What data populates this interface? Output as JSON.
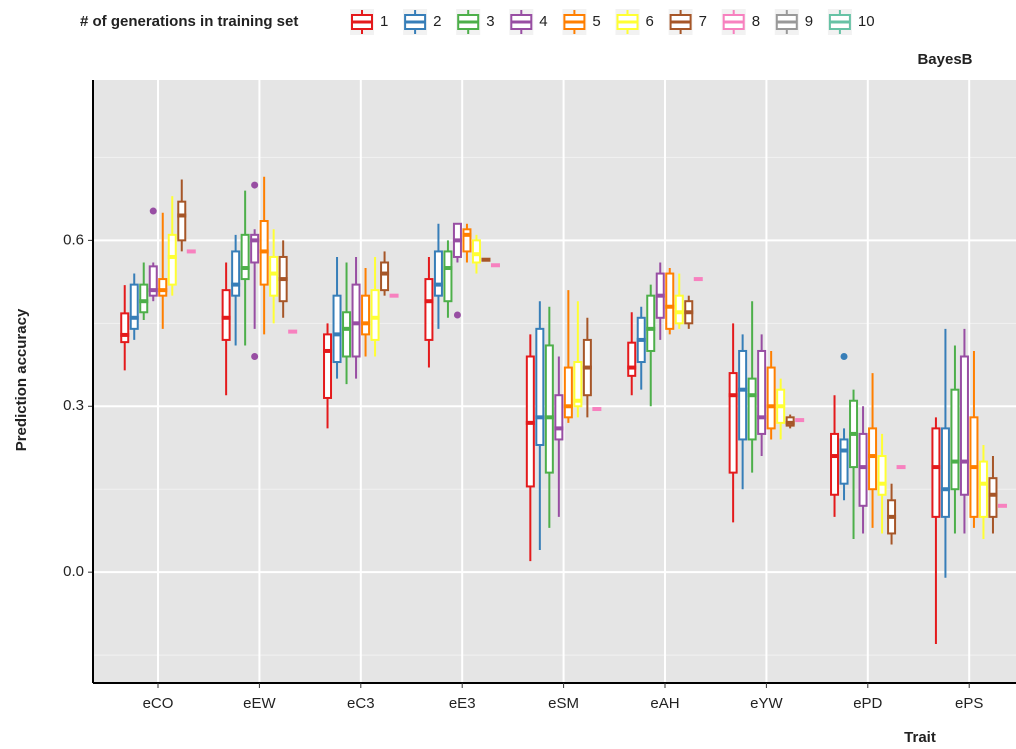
{
  "chart_data": {
    "type": "boxplot",
    "legend_title": "# of generations in training set",
    "panel_label": "BayesB",
    "xlabel": "Trait",
    "ylabel": "Prediction accuracy",
    "categories": [
      "eCO",
      "eEW",
      "eC3",
      "eE3",
      "eSM",
      "eAH",
      "eYW",
      "ePD",
      "ePS"
    ],
    "ylim": [
      -0.195,
      0.89
    ],
    "yticks": [
      {
        "value": 0,
        "label": "0.0"
      },
      0.3,
      0.6
    ],
    "grid": true,
    "legend_position": "top",
    "series": [
      {
        "name": "1",
        "color": "#e41a1c",
        "values": [
          [
            0.365,
            0.416,
            0.429,
            0.468,
            0.519
          ],
          [
            0.32,
            0.42,
            0.46,
            0.51,
            0.56
          ],
          [
            0.26,
            0.315,
            0.4,
            0.43,
            0.45
          ],
          [
            0.37,
            0.42,
            0.49,
            0.53,
            0.57
          ],
          [
            0.02,
            0.155,
            0.27,
            0.39,
            0.43
          ],
          [
            0.32,
            0.355,
            0.37,
            0.415,
            0.47
          ],
          [
            0.09,
            0.18,
            0.32,
            0.36,
            0.45
          ],
          [
            0.1,
            0.14,
            0.21,
            0.25,
            0.32
          ],
          [
            -0.13,
            0.1,
            0.19,
            0.26,
            0.28
          ]
        ]
      },
      {
        "name": "2",
        "color": "#377eb8",
        "values": [
          [
            0.42,
            0.44,
            0.46,
            0.52,
            0.54
          ],
          [
            0.41,
            0.5,
            0.52,
            0.58,
            0.61
          ],
          [
            0.35,
            0.38,
            0.43,
            0.5,
            0.57
          ],
          [
            0.44,
            0.5,
            0.52,
            0.58,
            0.63
          ],
          [
            0.04,
            0.23,
            0.28,
            0.44,
            0.49
          ],
          [
            0.33,
            0.38,
            0.42,
            0.46,
            0.48
          ],
          [
            0.15,
            0.24,
            0.33,
            0.4,
            0.43
          ],
          [
            0.13,
            0.16,
            0.22,
            0.24,
            0.26
          ],
          [
            -0.01,
            0.1,
            0.15,
            0.26,
            0.44
          ]
        ],
        "outliers": [
          [],
          [],
          [],
          [],
          [],
          [],
          [],
          [
            0.39
          ],
          []
        ]
      },
      {
        "name": "3",
        "color": "#4daf4a",
        "values": [
          [
            0.456,
            0.47,
            0.49,
            0.52,
            0.56
          ],
          [
            0.41,
            0.53,
            0.55,
            0.61,
            0.69
          ],
          [
            0.34,
            0.39,
            0.44,
            0.47,
            0.56
          ],
          [
            0.46,
            0.49,
            0.55,
            0.58,
            0.6
          ],
          [
            0.08,
            0.18,
            0.28,
            0.41,
            0.48
          ],
          [
            0.3,
            0.4,
            0.44,
            0.5,
            0.52
          ],
          [
            0.18,
            0.24,
            0.32,
            0.35,
            0.49
          ],
          [
            0.06,
            0.19,
            0.25,
            0.31,
            0.33
          ],
          [
            0.07,
            0.15,
            0.2,
            0.33,
            0.41
          ]
        ]
      },
      {
        "name": "4",
        "color": "#984ea3",
        "values": [
          [
            0.49,
            0.5,
            0.51,
            0.553,
            0.56
          ],
          [
            0.44,
            0.56,
            0.6,
            0.61,
            0.62
          ],
          [
            0.35,
            0.39,
            0.45,
            0.52,
            0.57
          ],
          [
            0.56,
            0.57,
            0.6,
            0.63,
            0.63
          ],
          [
            0.1,
            0.24,
            0.26,
            0.32,
            0.39
          ],
          [
            0.42,
            0.46,
            0.5,
            0.54,
            0.56
          ],
          [
            0.21,
            0.25,
            0.28,
            0.4,
            0.43
          ],
          [
            0.07,
            0.12,
            0.19,
            0.25,
            0.3
          ],
          [
            0.07,
            0.14,
            0.2,
            0.39,
            0.44
          ]
        ],
        "outliers": [
          [
            0.653
          ],
          [
            0.7,
            0.39
          ],
          [],
          [
            0.465
          ],
          [],
          [],
          [],
          [],
          []
        ]
      },
      {
        "name": "5",
        "color": "#ff7f00",
        "values": [
          [
            0.44,
            0.5,
            0.51,
            0.53,
            0.65
          ],
          [
            0.43,
            0.52,
            0.58,
            0.635,
            0.715
          ],
          [
            0.39,
            0.43,
            0.45,
            0.5,
            0.55
          ],
          [
            0.56,
            0.58,
            0.61,
            0.62,
            0.63
          ],
          [
            0.27,
            0.28,
            0.3,
            0.37,
            0.51
          ],
          [
            0.43,
            0.44,
            0.48,
            0.54,
            0.55
          ],
          [
            0.24,
            0.26,
            0.3,
            0.37,
            0.4
          ],
          [
            0.08,
            0.15,
            0.21,
            0.26,
            0.36
          ],
          [
            0.08,
            0.1,
            0.19,
            0.28,
            0.4
          ]
        ]
      },
      {
        "name": "6",
        "color": "#ffff33",
        "values": [
          [
            0.5,
            0.52,
            0.57,
            0.61,
            0.68
          ],
          [
            0.45,
            0.5,
            0.54,
            0.57,
            0.62
          ],
          [
            0.39,
            0.42,
            0.46,
            0.51,
            0.57
          ],
          [
            0.54,
            0.56,
            0.575,
            0.6,
            0.61
          ],
          [
            0.28,
            0.3,
            0.31,
            0.38,
            0.49
          ],
          [
            0.44,
            0.45,
            0.47,
            0.5,
            0.54
          ],
          [
            0.24,
            0.27,
            0.3,
            0.33,
            0.35
          ],
          [
            0.07,
            0.14,
            0.16,
            0.21,
            0.25
          ],
          [
            0.06,
            0.1,
            0.16,
            0.2,
            0.23
          ]
        ]
      },
      {
        "name": "7",
        "color": "#a65628",
        "values": [
          [
            0.58,
            0.6,
            0.645,
            0.67,
            0.71
          ],
          [
            0.46,
            0.49,
            0.53,
            0.57,
            0.6
          ],
          [
            0.5,
            0.51,
            0.54,
            0.56,
            0.58
          ],
          [
            0.565,
            0.565,
            0.565,
            0.565,
            0.565
          ],
          [
            0.28,
            0.32,
            0.37,
            0.42,
            0.46
          ],
          [
            0.44,
            0.45,
            0.47,
            0.49,
            0.5
          ],
          [
            0.26,
            0.265,
            0.27,
            0.28,
            0.285
          ],
          [
            0.05,
            0.07,
            0.1,
            0.13,
            0.16
          ],
          [
            0.07,
            0.1,
            0.14,
            0.17,
            0.21
          ]
        ]
      },
      {
        "name": "8",
        "color": "#f781bf",
        "values": [
          [
            0.58,
            0.58,
            0.58,
            0.58,
            0.58
          ],
          [
            0.435,
            0.435,
            0.435,
            0.435,
            0.435
          ],
          [
            0.5,
            0.5,
            0.5,
            0.5,
            0.5
          ],
          [
            0.555,
            0.555,
            0.555,
            0.555,
            0.555
          ],
          [
            0.295,
            0.295,
            0.295,
            0.295,
            0.295
          ],
          [
            0.53,
            0.53,
            0.53,
            0.53,
            0.53
          ],
          [
            0.275,
            0.275,
            0.275,
            0.275,
            0.275
          ],
          [
            0.19,
            0.19,
            0.19,
            0.19,
            0.19
          ],
          [
            0.12,
            0.12,
            0.12,
            0.12,
            0.12
          ]
        ]
      },
      {
        "name": "9",
        "color": "#999999",
        "values": null
      },
      {
        "name": "10",
        "color": "#66c2a5",
        "values": null
      }
    ]
  }
}
